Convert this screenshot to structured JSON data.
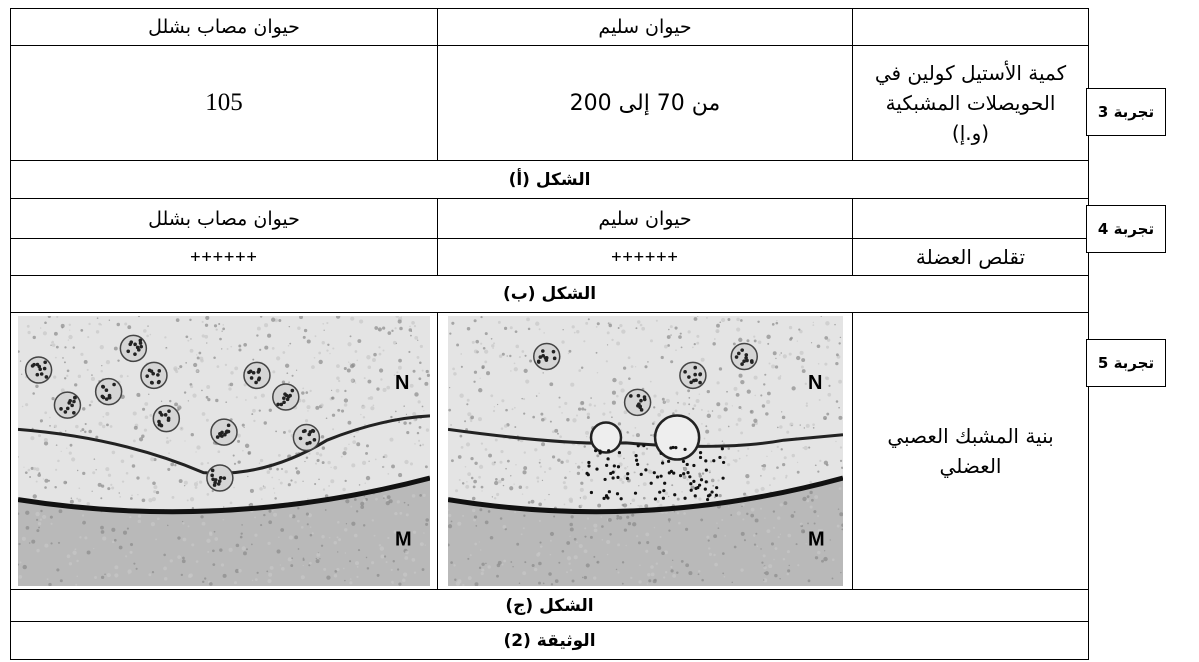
{
  "table": {
    "part_a": {
      "header": [
        "حيوان مصاب بشلل",
        "حيوان سليم"
      ],
      "row_label": "كمية الأستيل كولين في الحويصلات المشبكية (و.إ)",
      "values": [
        "105",
        "من 70 إلى 200"
      ],
      "caption": "الشكل (أ)"
    },
    "part_b": {
      "header": [
        "حيوان مصاب بشلل",
        "حيوان سليم"
      ],
      "row_label": "تقلص العضلة",
      "values": [
        "++++++",
        "++++++"
      ],
      "caption": "الشكل (ب)"
    },
    "part_c": {
      "row_label": "بنية المشبك العصبي العضلي",
      "images": [
        {
          "top_label": "N",
          "bottom_label": "M"
        },
        {
          "top_label": "N",
          "bottom_label": "M"
        }
      ],
      "caption": "الشكل (ج)"
    },
    "document_title": "الوثيقة (2)"
  },
  "side_labels": [
    "تجربة 3",
    "تجربة 4",
    "تجربة 5"
  ]
}
